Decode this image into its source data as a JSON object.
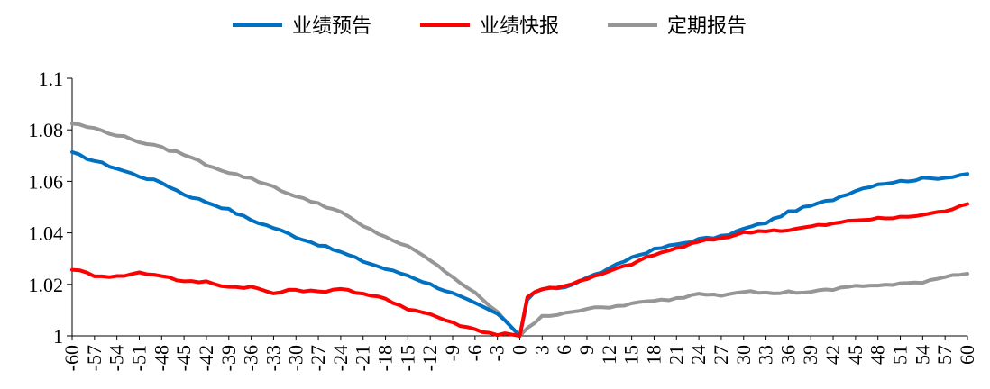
{
  "chart_data": {
    "type": "line",
    "title": "",
    "xlabel": "",
    "ylabel": "",
    "xlim": [
      -60,
      60
    ],
    "ylim": [
      1,
      1.1
    ],
    "yticks": [
      1,
      1.02,
      1.04,
      1.06,
      1.08,
      1.1
    ],
    "ytick_labels": [
      "1",
      "1.02",
      "1.04",
      "1.06",
      "1.08",
      "1.1"
    ],
    "xticks": [
      -60,
      -57,
      -54,
      -51,
      -48,
      -45,
      -42,
      -39,
      -36,
      -33,
      -30,
      -27,
      -24,
      -21,
      -18,
      -15,
      -12,
      -9,
      -6,
      -3,
      0,
      3,
      6,
      9,
      12,
      15,
      18,
      21,
      24,
      27,
      30,
      33,
      36,
      39,
      42,
      45,
      48,
      51,
      54,
      57,
      60
    ],
    "xtick_labels": [
      "-60",
      "-57",
      "-54",
      "-51",
      "-48",
      "-45",
      "-42",
      "-39",
      "-36",
      "-33",
      "-30",
      "-27",
      "-24",
      "-21",
      "-18",
      "-15",
      "-12",
      "-9",
      "-6",
      "-3",
      "0",
      "3",
      "6",
      "9",
      "12",
      "15",
      "18",
      "21",
      "24",
      "27",
      "30",
      "33",
      "36",
      "39",
      "42",
      "45",
      "48",
      "51",
      "54",
      "57",
      "60"
    ],
    "grid": false,
    "legend_position": "top",
    "series": [
      {
        "name": "业绩预告",
        "color": "#0070C0",
        "points": [
          [
            -60,
            1.071
          ],
          [
            -57,
            1.068
          ],
          [
            -54,
            1.065
          ],
          [
            -51,
            1.062
          ],
          [
            -48,
            1.0595
          ],
          [
            -45,
            1.055
          ],
          [
            -42,
            1.052
          ],
          [
            -39,
            1.049
          ],
          [
            -36,
            1.045
          ],
          [
            -33,
            1.042
          ],
          [
            -30,
            1.0385
          ],
          [
            -27,
            1.0355
          ],
          [
            -24,
            1.0325
          ],
          [
            -21,
            1.029
          ],
          [
            -18,
            1.026
          ],
          [
            -15,
            1.0235
          ],
          [
            -12,
            1.02
          ],
          [
            -9,
            1.0165
          ],
          [
            -6,
            1.0125
          ],
          [
            -3,
            1.0085
          ],
          [
            -2,
            1.006
          ],
          [
            -1,
            1.003
          ],
          [
            0,
            1.0
          ],
          [
            1,
            1.014
          ],
          [
            2,
            1.017
          ],
          [
            3,
            1.018
          ],
          [
            6,
            1.019
          ],
          [
            9,
            1.0225
          ],
          [
            12,
            1.026
          ],
          [
            15,
            1.0305
          ],
          [
            18,
            1.0335
          ],
          [
            21,
            1.0355
          ],
          [
            24,
            1.0375
          ],
          [
            27,
            1.0385
          ],
          [
            30,
            1.0415
          ],
          [
            33,
            1.044
          ],
          [
            36,
            1.048
          ],
          [
            39,
            1.0505
          ],
          [
            42,
            1.053
          ],
          [
            45,
            1.0565
          ],
          [
            48,
            1.059
          ],
          [
            51,
            1.06
          ],
          [
            54,
            1.061
          ],
          [
            57,
            1.0615
          ],
          [
            60,
            1.063
          ]
        ]
      },
      {
        "name": "业绩快报",
        "color": "#FF0000",
        "points": [
          [
            -60,
            1.026
          ],
          [
            -57,
            1.0235
          ],
          [
            -54,
            1.023
          ],
          [
            -51,
            1.0245
          ],
          [
            -48,
            1.0235
          ],
          [
            -45,
            1.021
          ],
          [
            -42,
            1.021
          ],
          [
            -39,
            1.019
          ],
          [
            -36,
            1.019
          ],
          [
            -33,
            1.0165
          ],
          [
            -30,
            1.018
          ],
          [
            -27,
            1.017
          ],
          [
            -24,
            1.0185
          ],
          [
            -21,
            1.016
          ],
          [
            -18,
            1.0145
          ],
          [
            -15,
            1.0105
          ],
          [
            -12,
            1.0085
          ],
          [
            -9,
            1.005
          ],
          [
            -6,
            1.0025
          ],
          [
            -3,
            1.0005
          ],
          [
            -2,
            1.001
          ],
          [
            -1,
            1.0005
          ],
          [
            0,
            1.0
          ],
          [
            1,
            1.015
          ],
          [
            2,
            1.017
          ],
          [
            3,
            1.018
          ],
          [
            6,
            1.0195
          ],
          [
            9,
            1.022
          ],
          [
            12,
            1.025
          ],
          [
            15,
            1.028
          ],
          [
            18,
            1.0315
          ],
          [
            21,
            1.034
          ],
          [
            24,
            1.0365
          ],
          [
            27,
            1.038
          ],
          [
            30,
            1.04
          ],
          [
            33,
            1.041
          ],
          [
            36,
            1.041
          ],
          [
            39,
            1.0425
          ],
          [
            42,
            1.0435
          ],
          [
            45,
            1.045
          ],
          [
            48,
            1.0455
          ],
          [
            51,
            1.046
          ],
          [
            54,
            1.047
          ],
          [
            57,
            1.0485
          ],
          [
            60,
            1.051
          ]
        ]
      },
      {
        "name": "定期报告",
        "color": "#969696",
        "points": [
          [
            -60,
            1.0825
          ],
          [
            -57,
            1.0805
          ],
          [
            -54,
            1.078
          ],
          [
            -51,
            1.0755
          ],
          [
            -48,
            1.073
          ],
          [
            -45,
            1.0705
          ],
          [
            -42,
            1.0665
          ],
          [
            -39,
            1.0635
          ],
          [
            -36,
            1.061
          ],
          [
            -33,
            1.058
          ],
          [
            -30,
            1.054
          ],
          [
            -27,
            1.0515
          ],
          [
            -24,
            1.048
          ],
          [
            -21,
            1.0425
          ],
          [
            -18,
            1.0385
          ],
          [
            -15,
            1.0345
          ],
          [
            -12,
            1.0295
          ],
          [
            -9,
            1.0225
          ],
          [
            -6,
            1.017
          ],
          [
            -3,
            1.009
          ],
          [
            -2,
            1.006
          ],
          [
            -1,
            1.003
          ],
          [
            0,
            1.0
          ],
          [
            1,
            1.003
          ],
          [
            2,
            1.005
          ],
          [
            3,
            1.0075
          ],
          [
            6,
            1.009
          ],
          [
            9,
            1.0105
          ],
          [
            12,
            1.011
          ],
          [
            15,
            1.0125
          ],
          [
            18,
            1.0135
          ],
          [
            21,
            1.0145
          ],
          [
            24,
            1.0165
          ],
          [
            27,
            1.016
          ],
          [
            30,
            1.0175
          ],
          [
            33,
            1.0165
          ],
          [
            36,
            1.017
          ],
          [
            39,
            1.017
          ],
          [
            42,
            1.018
          ],
          [
            45,
            1.0195
          ],
          [
            48,
            1.0195
          ],
          [
            51,
            1.02
          ],
          [
            54,
            1.021
          ],
          [
            57,
            1.023
          ],
          [
            60,
            1.0245
          ]
        ]
      }
    ]
  }
}
